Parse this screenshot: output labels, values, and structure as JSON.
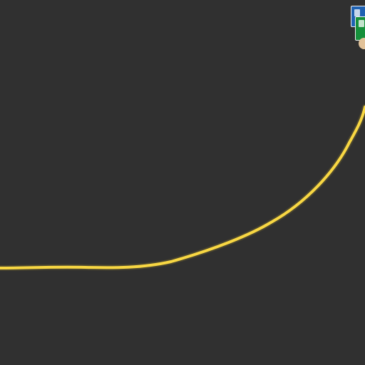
{
  "map": {
    "background_color": "#303030",
    "route": {
      "color": "#f8d743",
      "glow_color": "#c9aa2d"
    },
    "markers": [
      {
        "name": "blue-shield-marker",
        "icon": "blue-square-marker",
        "color": "#1f62b3"
      },
      {
        "name": "green-shield-marker",
        "icon": "green-square-marker",
        "color": "#16903b"
      },
      {
        "name": "tan-badge-marker",
        "icon": "tan-round-marker",
        "color": "#e2c299"
      }
    ]
  }
}
